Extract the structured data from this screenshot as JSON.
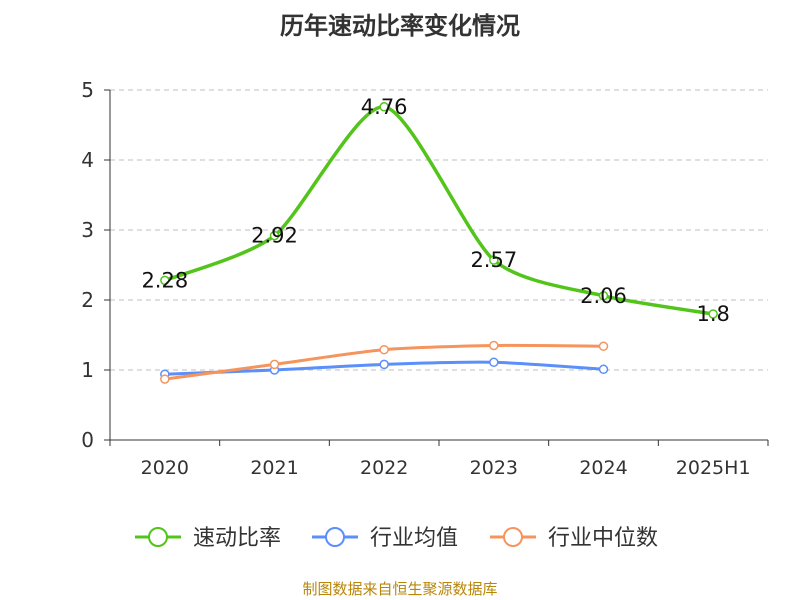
{
  "chart_data": {
    "type": "line",
    "title": "历年速动比率变化情况",
    "categories": [
      "2020",
      "2021",
      "2022",
      "2023",
      "2024",
      "2025H1"
    ],
    "ylim": [
      0,
      5
    ],
    "yticks": [
      0,
      1,
      2,
      3,
      4,
      5
    ],
    "grid": true,
    "legend_position": "bottom",
    "series": [
      {
        "name": "速动比率",
        "color": "#52c41a",
        "values": [
          2.28,
          2.92,
          4.76,
          2.57,
          2.06,
          1.8
        ],
        "labels": [
          "2.28",
          "2.92",
          "4.76",
          "2.57",
          "2.06",
          "1.8"
        ]
      },
      {
        "name": "行业均值",
        "color": "#5b8ff9",
        "values": [
          0.94,
          1.0,
          1.08,
          1.11,
          1.01,
          null
        ]
      },
      {
        "name": "行业中位数",
        "color": "#f6945d",
        "values": [
          0.87,
          1.08,
          1.29,
          1.35,
          1.34,
          null
        ]
      }
    ]
  },
  "footer": {
    "source": "制图数据来自恒生聚源数据库"
  }
}
